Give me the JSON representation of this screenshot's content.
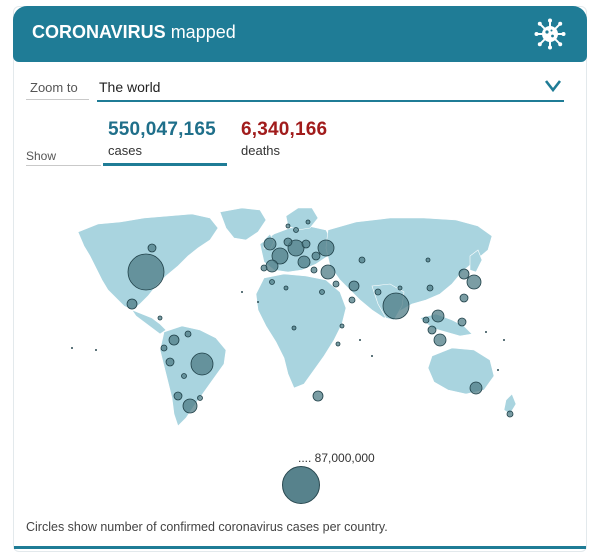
{
  "header": {
    "title_bold": "CORONAVIRUS",
    "title_rest": " mapped",
    "icon": "virus-icon"
  },
  "zoom": {
    "label": "Zoom to",
    "value": "The world",
    "icon": "chevron-down-icon"
  },
  "show": {
    "label": "Show",
    "cases": {
      "value": "550,047,165",
      "label": "cases",
      "selected": true
    },
    "deaths": {
      "value": "6,340,166",
      "label": "deaths",
      "selected": false
    }
  },
  "legend": {
    "label": ".... 87,000,000"
  },
  "footnote": "Circles show number of confirmed coronavirus cases per country.",
  "colors": {
    "accent": "#1f7c96",
    "cases": "#1f6f8a",
    "deaths": "#a11c1c",
    "land": "#a9d4df",
    "circle": "#4f7c86"
  }
}
